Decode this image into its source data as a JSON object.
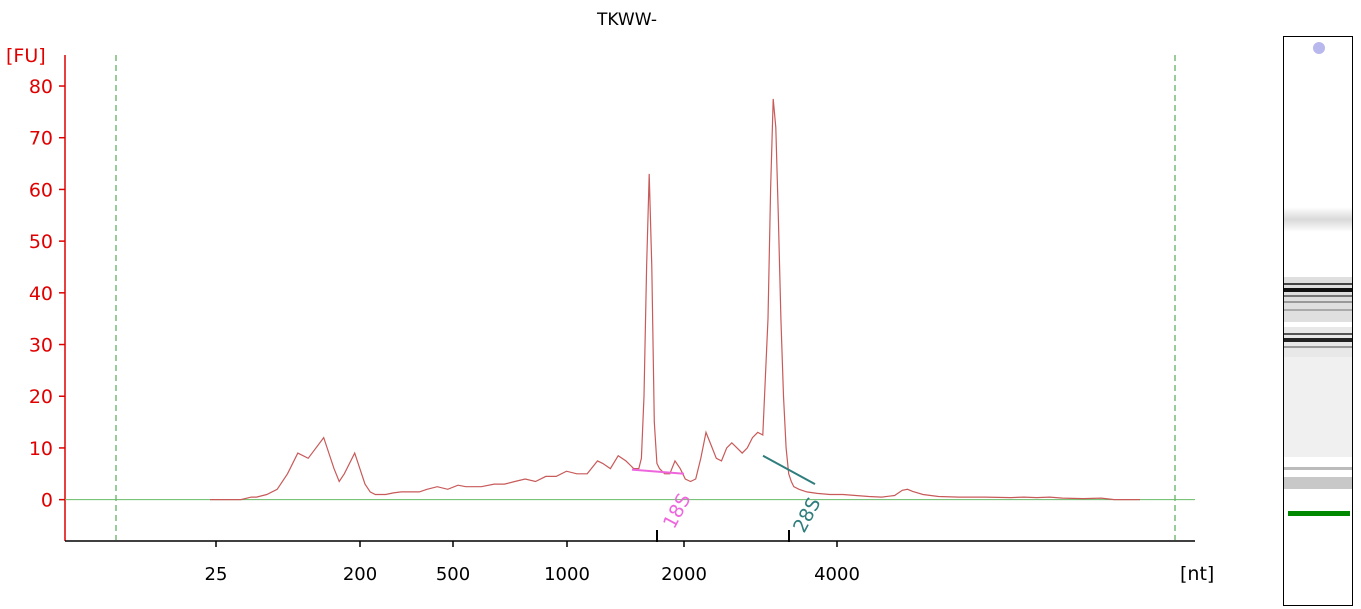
{
  "chart_data": {
    "type": "line",
    "title": "TKWW-",
    "ylabel": "[FU]",
    "xlabel": "[nt]",
    "yticks": [
      0,
      10,
      20,
      30,
      40,
      50,
      60,
      70,
      80
    ],
    "xticks": [
      "25",
      "200",
      "500",
      "1000",
      "2000",
      "4000"
    ],
    "ylim": [
      -8,
      86
    ],
    "grid": false,
    "legend": "none",
    "colors": {
      "trace": "#c85a5a",
      "baseline": "#66bb66",
      "axis_y": "#e00000",
      "marker_18s": "#ee66dd",
      "marker_28s": "#2f7d7d",
      "gel_band": "#008800",
      "gel_marker": "#b8b8ee"
    },
    "series": [
      {
        "x": [
          0,
          4,
          12,
          16,
          18,
          22,
          26,
          30,
          34,
          38,
          44,
          48,
          50,
          52,
          56,
          60,
          62,
          64,
          66,
          68,
          71,
          74,
          77,
          79,
          81,
          84,
          88,
          92,
          96,
          99,
          102,
          105,
          110,
          114,
          118,
          122,
          126,
          130,
          134,
          138,
          142,
          146,
          150,
          152,
          155,
          158,
          161,
          163,
          164,
          165,
          166,
          167,
          168,
          169,
          170,
          171,
          172,
          173,
          174,
          176,
          178,
          180,
          182,
          184,
          186,
          188,
          190,
          192,
          194,
          196,
          198,
          200,
          202,
          204,
          206,
          208,
          210,
          212,
          214,
          216,
          217,
          218,
          219,
          220,
          221,
          222,
          223,
          224,
          225,
          226,
          228,
          231,
          235,
          240,
          245,
          250,
          255,
          260,
          265,
          268,
          270,
          272,
          276,
          282,
          290,
          300,
          310,
          315,
          320,
          325,
          330,
          338,
          345,
          350,
          355,
          360
        ],
        "y": [
          0,
          0,
          0,
          0.5,
          0.5,
          1,
          2,
          5,
          9,
          8,
          12,
          6,
          3.5,
          5,
          9,
          3,
          1.5,
          1,
          1,
          1,
          1.3,
          1.5,
          1.5,
          1.5,
          1.5,
          2,
          2.5,
          2,
          2.8,
          2.5,
          2.5,
          2.5,
          3,
          3,
          3.5,
          4,
          3.5,
          4.5,
          4.5,
          5.5,
          5,
          5,
          7.5,
          7,
          6,
          8.5,
          7.5,
          6.5,
          6,
          6,
          6,
          8,
          20,
          45,
          63,
          45,
          15,
          7,
          6,
          5,
          5,
          7.5,
          6,
          4,
          3.5,
          4,
          8,
          13,
          10.5,
          8,
          7.5,
          10,
          11,
          10,
          9,
          10,
          12,
          13,
          12.5,
          35,
          60,
          77.5,
          72,
          55,
          35,
          20,
          10,
          5,
          3.5,
          2.5,
          2,
          1.5,
          1.2,
          1,
          1,
          0.8,
          0.6,
          0.5,
          0.8,
          1.8,
          2,
          1.6,
          1,
          0.6,
          0.5,
          0.5,
          0.4,
          0.5,
          0.4,
          0.5,
          0.3,
          0.2,
          0.3,
          0,
          0,
          0
        ]
      }
    ],
    "annotations": [
      {
        "label": "18S",
        "peak_y": 63
      },
      {
        "label": "28S",
        "peak_y": 77.5
      }
    ]
  }
}
